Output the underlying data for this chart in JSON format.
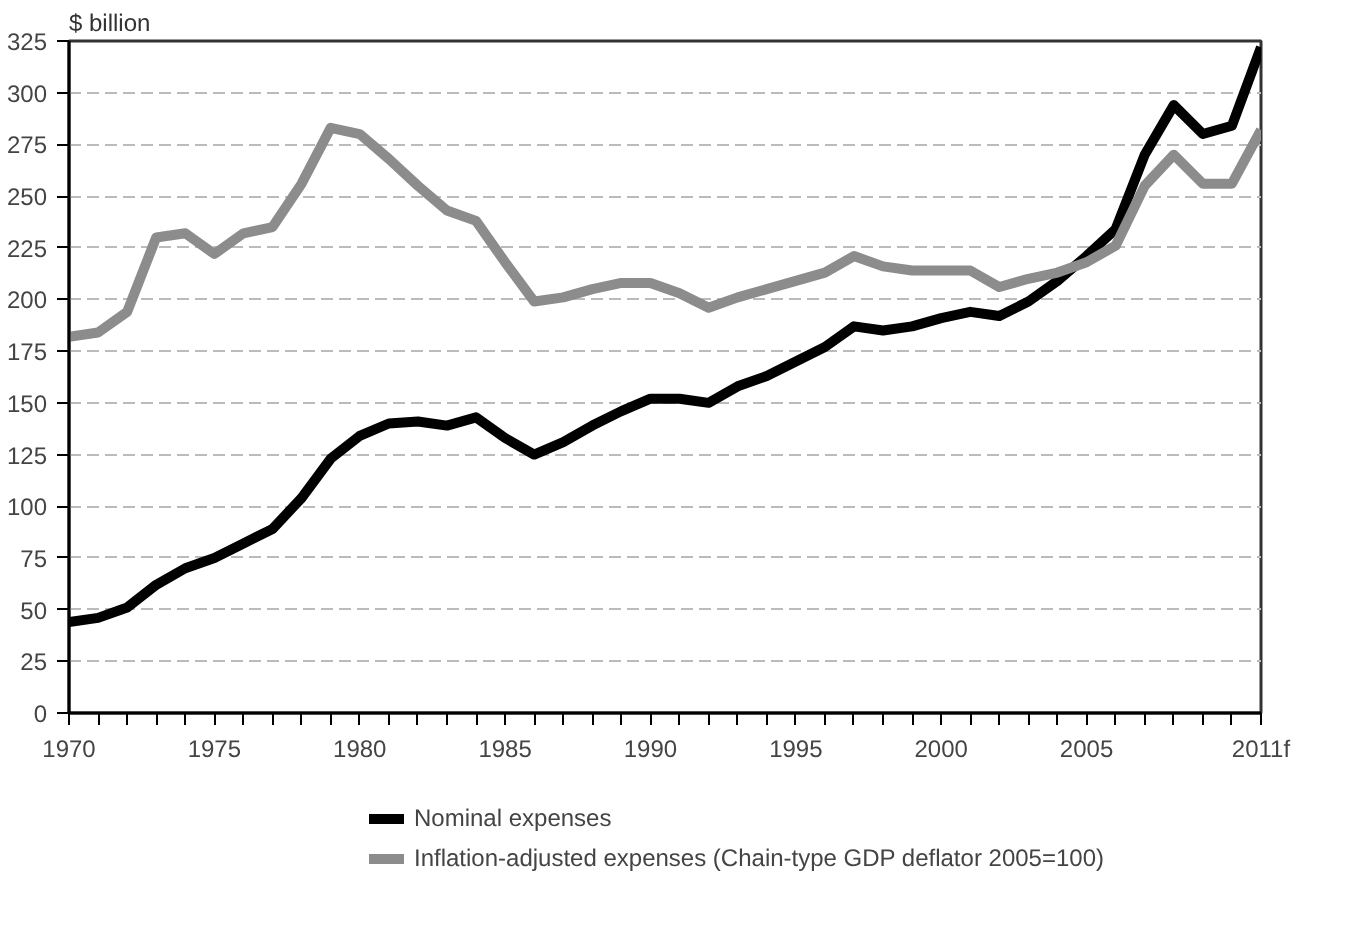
{
  "chart_data": {
    "type": "line",
    "ylabel": "$ billion",
    "x": [
      1970,
      1971,
      1972,
      1973,
      1974,
      1975,
      1976,
      1977,
      1978,
      1979,
      1980,
      1981,
      1982,
      1983,
      1984,
      1985,
      1986,
      1987,
      1988,
      1989,
      1990,
      1991,
      1992,
      1993,
      1994,
      1995,
      1996,
      1997,
      1998,
      1999,
      2000,
      2001,
      2002,
      2003,
      2004,
      2005,
      2006,
      2007,
      2008,
      2009,
      2010,
      2011
    ],
    "series": [
      {
        "name": "Nominal expenses",
        "color": "#000000",
        "values": [
          44,
          46,
          51,
          62,
          70,
          75,
          82,
          89,
          104,
          123,
          134,
          140,
          141,
          139,
          143,
          133,
          125,
          131,
          139,
          146,
          152,
          152,
          150,
          158,
          163,
          170,
          177,
          187,
          185,
          187,
          191,
          194,
          192,
          199,
          209,
          221,
          234,
          270,
          294,
          280,
          284,
          322
        ]
      },
      {
        "name": "Inflation-adjusted expenses (Chain-type GDP deflator 2005=100)",
        "color": "#8c8c8c",
        "values": [
          182,
          184,
          194,
          230,
          232,
          222,
          232,
          235,
          256,
          283,
          280,
          268,
          255,
          243,
          238,
          218,
          199,
          201,
          205,
          208,
          208,
          203,
          196,
          201,
          205,
          209,
          213,
          221,
          216,
          214,
          214,
          214,
          206,
          210,
          213,
          218,
          226,
          255,
          270,
          256,
          256,
          282
        ]
      }
    ],
    "xlim": [
      1970,
      2011
    ],
    "ylim": [
      0,
      325
    ],
    "xticks": [
      1970,
      {
        "value": 1971,
        "label": null
      },
      {
        "value": 1972,
        "label": null
      },
      {
        "value": 1973,
        "label": null
      },
      {
        "value": 1974,
        "label": null
      },
      1975,
      {
        "value": 1976,
        "label": null
      },
      {
        "value": 1977,
        "label": null
      },
      {
        "value": 1978,
        "label": null
      },
      {
        "value": 1979,
        "label": null
      },
      1980,
      {
        "value": 1981,
        "label": null
      },
      {
        "value": 1982,
        "label": null
      },
      {
        "value": 1983,
        "label": null
      },
      {
        "value": 1984,
        "label": null
      },
      1985,
      {
        "value": 1986,
        "label": null
      },
      {
        "value": 1987,
        "label": null
      },
      {
        "value": 1988,
        "label": null
      },
      {
        "value": 1989,
        "label": null
      },
      1990,
      {
        "value": 1991,
        "label": null
      },
      {
        "value": 1992,
        "label": null
      },
      {
        "value": 1993,
        "label": null
      },
      {
        "value": 1994,
        "label": null
      },
      1995,
      {
        "value": 1996,
        "label": null
      },
      {
        "value": 1997,
        "label": null
      },
      {
        "value": 1998,
        "label": null
      },
      {
        "value": 1999,
        "label": null
      },
      2000,
      {
        "value": 2001,
        "label": null
      },
      {
        "value": 2002,
        "label": null
      },
      {
        "value": 2003,
        "label": null
      },
      {
        "value": 2004,
        "label": null
      },
      2005,
      {
        "value": 2006,
        "label": null
      },
      {
        "value": 2007,
        "label": null
      },
      {
        "value": 2008,
        "label": null
      },
      {
        "value": 2009,
        "label": null
      },
      {
        "value": 2010,
        "label": null
      },
      {
        "value": 2011,
        "label": "2011f"
      }
    ],
    "yticks": [
      0,
      25,
      50,
      75,
      100,
      125,
      150,
      175,
      200,
      225,
      250,
      275,
      300,
      325
    ],
    "grid": "y",
    "legend": "bottom",
    "line_style": "solid",
    "marker": "none"
  }
}
